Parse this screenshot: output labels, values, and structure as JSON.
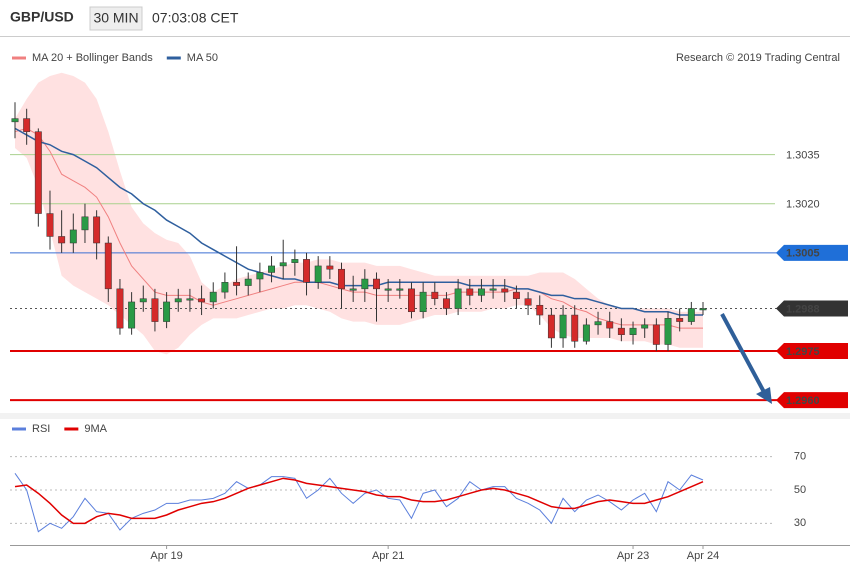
{
  "header": {
    "symbol": "GBP/USD",
    "timeframe": "30 MIN",
    "time": "07:03:08 CET",
    "credit": "Research © 2019 Trading Central"
  },
  "chart_data": [
    {
      "type": "candlestick",
      "ylim": [
        1.2957,
        1.307
      ],
      "up_color": "#2a9a46",
      "down_color": "#d42a2a",
      "open": [
        1.3045,
        1.3046,
        1.3042,
        1.3017,
        1.301,
        1.3008,
        1.3012,
        1.3016,
        1.3008,
        1.2994,
        1.2982,
        1.299,
        1.2991,
        1.2984,
        1.299,
        1.2991,
        1.2991,
        1.299,
        1.2993,
        1.2996,
        1.2995,
        1.2997,
        1.2999,
        1.3001,
        1.3002,
        1.3003,
        1.2996,
        1.3001,
        1.3,
        1.2994,
        1.2994,
        1.2997,
        1.2994,
        1.2994,
        1.2994,
        1.2987,
        1.2993,
        1.2991,
        1.2988,
        1.2994,
        1.2992,
        1.2994,
        1.2994,
        1.2993,
        1.2991,
        1.2989,
        1.2986,
        1.2979,
        1.2986,
        1.2978,
        1.2983,
        1.2984,
        1.2982,
        1.298,
        1.2982,
        1.2983,
        1.2977,
        1.2985,
        1.2984,
        1.2988
      ],
      "high": [
        1.3051,
        1.3049,
        1.3043,
        1.3024,
        1.3018,
        1.3017,
        1.302,
        1.3018,
        1.301,
        1.2997,
        1.2993,
        1.2995,
        1.2994,
        1.2993,
        1.2994,
        1.2994,
        1.2995,
        1.2996,
        1.2999,
        1.3007,
        1.2999,
        1.3002,
        1.3004,
        1.3009,
        1.3006,
        1.3005,
        1.3004,
        1.3004,
        1.3002,
        1.2998,
        1.3,
        1.2999,
        1.2997,
        1.2997,
        1.2996,
        1.2996,
        1.2996,
        1.2993,
        1.2997,
        1.2997,
        1.2997,
        1.2997,
        1.2997,
        1.2995,
        1.2993,
        1.2992,
        1.2988,
        1.2989,
        1.2989,
        1.2985,
        1.2987,
        1.2987,
        1.2985,
        1.2984,
        1.2985,
        1.2985,
        1.2987,
        1.2988,
        1.299,
        1.299
      ],
      "low": [
        1.304,
        1.3038,
        1.3013,
        1.3006,
        1.3005,
        1.3005,
        1.3008,
        1.3003,
        1.299,
        1.298,
        1.298,
        1.2987,
        1.2981,
        1.2982,
        1.2987,
        1.2987,
        1.2986,
        1.2988,
        1.2991,
        1.2992,
        1.2992,
        1.2993,
        1.2996,
        1.2997,
        1.2998,
        1.2992,
        1.2994,
        1.2997,
        1.2988,
        1.299,
        1.299,
        1.2984,
        1.299,
        1.2991,
        1.2985,
        1.2985,
        1.2989,
        1.2986,
        1.2986,
        1.2989,
        1.299,
        1.2991,
        1.299,
        1.2988,
        1.2986,
        1.2983,
        1.2976,
        1.2976,
        1.2976,
        1.2977,
        1.298,
        1.2979,
        1.2978,
        1.2977,
        1.2979,
        1.2975,
        1.2975,
        1.2981,
        1.2983,
        1.2986
      ],
      "close": [
        1.3046,
        1.3042,
        1.3017,
        1.301,
        1.3008,
        1.3012,
        1.3016,
        1.3008,
        1.2994,
        1.2982,
        1.299,
        1.2991,
        1.2984,
        1.299,
        1.2991,
        1.2991,
        1.299,
        1.2993,
        1.2996,
        1.2995,
        1.2997,
        1.2999,
        1.3001,
        1.3002,
        1.3003,
        1.2996,
        1.3001,
        1.3,
        1.2994,
        1.2994,
        1.2997,
        1.2994,
        1.2994,
        1.2994,
        1.2987,
        1.2993,
        1.2991,
        1.2988,
        1.2994,
        1.2992,
        1.2994,
        1.2994,
        1.2993,
        1.2991,
        1.2989,
        1.2986,
        1.2979,
        1.2986,
        1.2978,
        1.2983,
        1.2984,
        1.2982,
        1.298,
        1.2982,
        1.2983,
        1.2977,
        1.2985,
        1.2984,
        1.2988,
        1.2988
      ],
      "series": [
        {
          "name": "MA 20 + Bollinger Bands",
          "color": "#f08080",
          "band_color": "#ffe1e1",
          "values": [
            1.3042,
            1.3043,
            1.3041,
            1.3036,
            1.3029,
            1.3027,
            1.3025,
            1.3022,
            1.3016,
            1.3008,
            1.3001,
            1.2997,
            1.2993,
            1.2992,
            1.2992,
            1.2992,
            1.299,
            1.2989,
            1.299,
            1.2991,
            1.2992,
            1.2993,
            1.2994,
            1.2995,
            1.2996,
            1.2996,
            1.2996,
            1.2995,
            1.2994,
            1.2993,
            1.2993,
            1.2992,
            1.2992,
            1.2992,
            1.2992,
            1.2992,
            1.2992,
            1.2992,
            1.2993,
            1.2993,
            1.2993,
            1.2993,
            1.2993,
            1.2994,
            1.2994,
            1.2993,
            1.2991,
            1.299,
            1.2988,
            1.2987,
            1.2985,
            1.2984,
            1.2983,
            1.2983,
            1.2983,
            1.2983,
            1.2983,
            1.2982,
            1.2982,
            1.2982
          ],
          "upper": [
            1.3046,
            1.3052,
            1.3057,
            1.3059,
            1.306,
            1.3059,
            1.3057,
            1.3052,
            1.3042,
            1.303,
            1.3019,
            1.3014,
            1.3011,
            1.3009,
            1.3008,
            1.3004,
            1.2996,
            1.2993,
            1.2995,
            1.2997,
            1.2998,
            1.2999,
            1.3,
            1.3001,
            1.3002,
            1.3002,
            1.3003,
            1.3003,
            1.3002,
            1.3002,
            1.3002,
            1.3001,
            1.3001,
            1.3001,
            1.3,
            1.2999,
            1.2998,
            1.2998,
            1.2998,
            1.2998,
            1.2998,
            1.2998,
            1.2998,
            1.2998,
            1.2998,
            1.2999,
            1.2999,
            1.2999,
            1.2997,
            1.2994,
            1.2991,
            1.2989,
            1.2988,
            1.2988,
            1.2988,
            1.2988,
            1.2988,
            1.2987,
            1.2987,
            1.2987
          ],
          "lower": [
            1.3037,
            1.3034,
            1.3025,
            1.3012,
            1.2998,
            1.2995,
            1.2993,
            1.2991,
            1.2989,
            1.2986,
            1.2983,
            1.298,
            1.2975,
            1.2974,
            1.2976,
            1.298,
            1.2983,
            1.2985,
            1.2985,
            1.2985,
            1.2986,
            1.2987,
            1.2988,
            1.2988,
            1.2989,
            1.2989,
            1.2988,
            1.2987,
            1.2985,
            1.2984,
            1.2984,
            1.2983,
            1.2983,
            1.2983,
            1.2984,
            1.2985,
            1.2986,
            1.2986,
            1.2987,
            1.2987,
            1.2987,
            1.2988,
            1.2988,
            1.2989,
            1.2989,
            1.2986,
            1.2982,
            1.298,
            1.2979,
            1.2979,
            1.2979,
            1.2979,
            1.2978,
            1.2978,
            1.2978,
            1.2977,
            1.2977,
            1.2976,
            1.2976,
            1.2976
          ]
        },
        {
          "name": "MA 50",
          "color": "#2f5f9e",
          "values": [
            1.3043,
            1.3041,
            1.3039,
            1.3038,
            1.3036,
            1.3035,
            1.3033,
            1.3031,
            1.3028,
            1.3025,
            1.3023,
            1.302,
            1.3018,
            1.3015,
            1.3013,
            1.3011,
            1.3008,
            1.3006,
            1.3004,
            1.3002,
            1.3,
            1.2999,
            1.2998,
            1.2997,
            1.2997,
            1.2996,
            1.2996,
            1.2996,
            1.2995,
            1.2995,
            1.2995,
            1.2995,
            1.2996,
            1.2996,
            1.2996,
            1.2996,
            1.2996,
            1.2996,
            1.2996,
            1.2995,
            1.2995,
            1.2995,
            1.2995,
            1.2994,
            1.2994,
            1.2993,
            1.2992,
            1.2992,
            1.2991,
            1.2991,
            1.299,
            1.2989,
            1.2988,
            1.2988,
            1.2987,
            1.2987,
            1.2987,
            1.2986,
            1.2986,
            1.2986
          ]
        }
      ],
      "levels": [
        {
          "value": 1.3035,
          "label": "1.3035",
          "color": "#a9d18e"
        },
        {
          "value": 1.302,
          "label": "1.3020",
          "color": "#a9d18e"
        },
        {
          "value": 1.3005,
          "label": "1.3005",
          "color": "#3b6fd4",
          "badge": "#1f6fd8"
        },
        {
          "value": 1.2988,
          "label": "1.2988",
          "color": "#555555",
          "badge": "#333333",
          "dotted": true
        },
        {
          "value": 1.2975,
          "label": "1.2975",
          "color": "#e00000",
          "badge": "#e00000"
        },
        {
          "value": 1.296,
          "label": "1.2960",
          "color": "#e00000",
          "badge": "#e00000"
        }
      ]
    },
    {
      "type": "line",
      "ylim": [
        20,
        77
      ],
      "yticks": [
        30,
        50,
        70
      ],
      "categories": [
        null,
        null,
        null,
        null,
        null,
        null,
        null,
        null,
        null,
        null,
        null,
        null,
        null,
        "Apr 19",
        null,
        null,
        null,
        null,
        null,
        null,
        null,
        null,
        null,
        null,
        null,
        null,
        null,
        null,
        null,
        null,
        null,
        null,
        "Apr 21",
        null,
        null,
        null,
        null,
        null,
        null,
        null,
        null,
        null,
        null,
        null,
        null,
        null,
        null,
        null,
        null,
        null,
        null,
        null,
        null,
        "Apr 23",
        null,
        null,
        null,
        null,
        null,
        "Apr 24"
      ],
      "series": [
        {
          "name": "RSI",
          "color": "#5b7fdc",
          "values": [
            60,
            50,
            25,
            30,
            27,
            34,
            45,
            37,
            36,
            26,
            33,
            36,
            38,
            42,
            42,
            44,
            44,
            45,
            48,
            55,
            51,
            53,
            58,
            58,
            57,
            45,
            50,
            57,
            48,
            42,
            48,
            50,
            45,
            44,
            33,
            48,
            50,
            40,
            45,
            55,
            50,
            52,
            52,
            45,
            42,
            38,
            30,
            45,
            37,
            44,
            47,
            43,
            38,
            44,
            48,
            37,
            55,
            50,
            59,
            56
          ]
        },
        {
          "name": "9MA",
          "color": "#e00000",
          "values": [
            52,
            53,
            48,
            42,
            35,
            30,
            30,
            34,
            36,
            35,
            33,
            33,
            33,
            35,
            38,
            40,
            42,
            43,
            45,
            48,
            51,
            53,
            55,
            57,
            56,
            54,
            53,
            52,
            51,
            50,
            49,
            47,
            46,
            46,
            44,
            43,
            43,
            44,
            46,
            48,
            50,
            51,
            50,
            48,
            46,
            43,
            40,
            39,
            39,
            41,
            43,
            44,
            43,
            42,
            42,
            44,
            46,
            49,
            52,
            55
          ]
        }
      ]
    }
  ]
}
